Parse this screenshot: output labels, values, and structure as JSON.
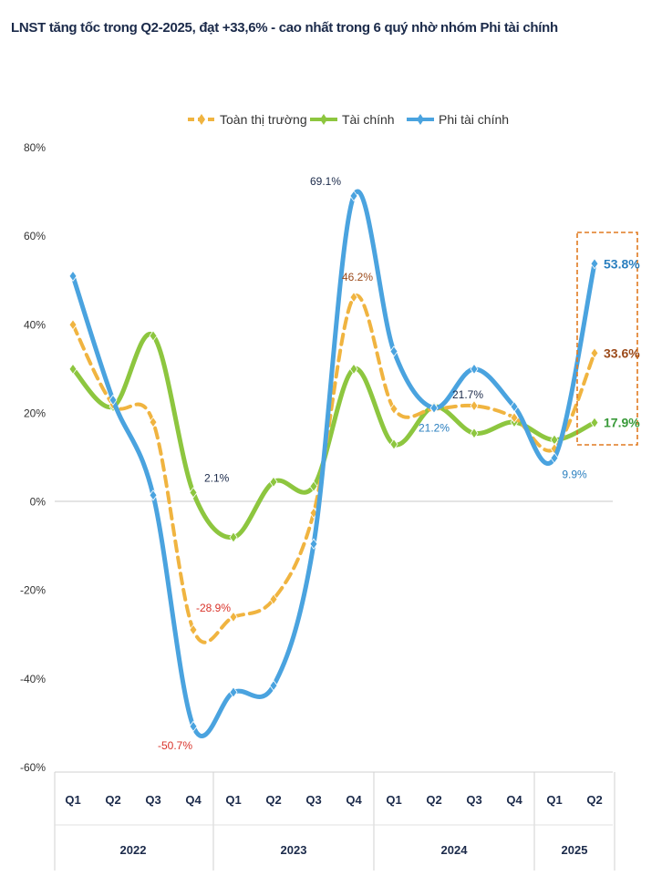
{
  "title": "LNST tăng tốc trong Q2-2025, đạt +33,6% - cao nhất trong 6 quý nhờ nhóm Phi tài chính",
  "chart_data": {
    "type": "line",
    "categories": [
      "Q1",
      "Q2",
      "Q3",
      "Q4",
      "Q1",
      "Q2",
      "Q3",
      "Q4",
      "Q1",
      "Q2",
      "Q3",
      "Q4",
      "Q1",
      "Q2"
    ],
    "year_groups": [
      {
        "label": "2022",
        "start": 0,
        "end": 3
      },
      {
        "label": "2023",
        "start": 4,
        "end": 7
      },
      {
        "label": "2024",
        "start": 8,
        "end": 11
      },
      {
        "label": "2025",
        "start": 12,
        "end": 13
      }
    ],
    "yticks": [
      "80%",
      "60%",
      "40%",
      "20%",
      "0%",
      "-20%",
      "-40%",
      "-60%"
    ],
    "ylim": [
      -60,
      80
    ],
    "grid": false,
    "legend_position": "top",
    "series": [
      {
        "name": "Toàn thị trường",
        "color": "#f0b440",
        "dashed": true,
        "values": [
          40,
          22,
          18,
          -28.9,
          -26,
          -22,
          -2.5,
          46.2,
          21,
          21,
          21.7,
          19,
          12,
          33.6
        ]
      },
      {
        "name": "Tài chính",
        "color": "#8dc63f",
        "dashed": false,
        "values": [
          30,
          21.5,
          37.5,
          2.1,
          -8,
          4.5,
          3.5,
          30,
          13,
          21.5,
          15.5,
          18,
          14,
          17.9
        ]
      },
      {
        "name": "Phi tài chính",
        "color": "#4aa3df",
        "dashed": false,
        "values": [
          51,
          23,
          1.5,
          -50.7,
          -43,
          -41.5,
          -9.5,
          69.1,
          34,
          21.2,
          30,
          21.5,
          9.9,
          53.8
        ]
      }
    ],
    "annotations": [
      {
        "text": "2.1%",
        "series": 1,
        "index": 3,
        "color": "#1b2a4a"
      },
      {
        "text": "-28.9%",
        "series": 0,
        "index": 3,
        "color": "#d9342b"
      },
      {
        "text": "-50.7%",
        "series": 2,
        "index": 3,
        "color": "#d9342b"
      },
      {
        "text": "69.1%",
        "series": 2,
        "index": 7,
        "color": "#1b2a4a"
      },
      {
        "text": "46.2%",
        "series": 0,
        "index": 7,
        "color": "#9b4a1a"
      },
      {
        "text": "21.7%",
        "series": 0,
        "index": 10,
        "color": "#1b2a4a"
      },
      {
        "text": "21.2%",
        "series": 2,
        "index": 9,
        "color": "#2a7fbf"
      },
      {
        "text": "9.9%",
        "series": 2,
        "index": 12,
        "color": "#2a7fbf"
      },
      {
        "text": "53.8%",
        "series": 2,
        "index": 13,
        "color": "#2a7fbf",
        "bold": true
      },
      {
        "text": "33.6%",
        "series": 0,
        "index": 13,
        "color": "#9b4a1a",
        "bold": true
      },
      {
        "text": "17.9%",
        "series": 1,
        "index": 13,
        "color": "#3a9a3a",
        "bold": true
      }
    ]
  }
}
